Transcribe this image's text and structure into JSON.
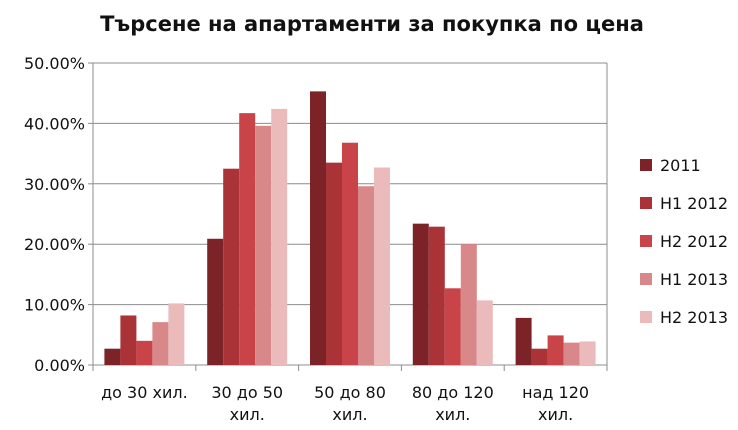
{
  "chart_data": {
    "type": "bar",
    "title": "Търсене на апартаменти за покупка по цена",
    "xlabel": "",
    "ylabel": "",
    "ylim": [
      0,
      0.5
    ],
    "y_tick_values": [
      0,
      0.1,
      0.2,
      0.3,
      0.4,
      0.5
    ],
    "y_tick_labels": [
      "0.00%",
      "10.00%",
      "20.00%",
      "30.00%",
      "40.00%",
      "50.00%"
    ],
    "grid": true,
    "legend_position": "right",
    "categories": [
      [
        "до 30 хил."
      ],
      [
        "30 до 50",
        "хил."
      ],
      [
        "50 до 80",
        "хил."
      ],
      [
        "80 до 120",
        "хил."
      ],
      [
        "над 120",
        "хил."
      ]
    ],
    "series": [
      {
        "name": "2011",
        "color": "#7b2326",
        "values": [
          0.027,
          0.209,
          0.453,
          0.234,
          0.078
        ]
      },
      {
        "name": "H1 2012",
        "color": "#a93336",
        "values": [
          0.082,
          0.325,
          0.335,
          0.229,
          0.027
        ]
      },
      {
        "name": "H2 2012",
        "color": "#c84448",
        "values": [
          0.04,
          0.417,
          0.368,
          0.127,
          0.049
        ]
      },
      {
        "name": "H1 2013",
        "color": "#d88889",
        "values": [
          0.071,
          0.396,
          0.296,
          0.2,
          0.037
        ]
      },
      {
        "name": "H2 2013",
        "color": "#ebbbbc",
        "values": [
          0.102,
          0.424,
          0.327,
          0.107,
          0.039
        ]
      }
    ]
  }
}
